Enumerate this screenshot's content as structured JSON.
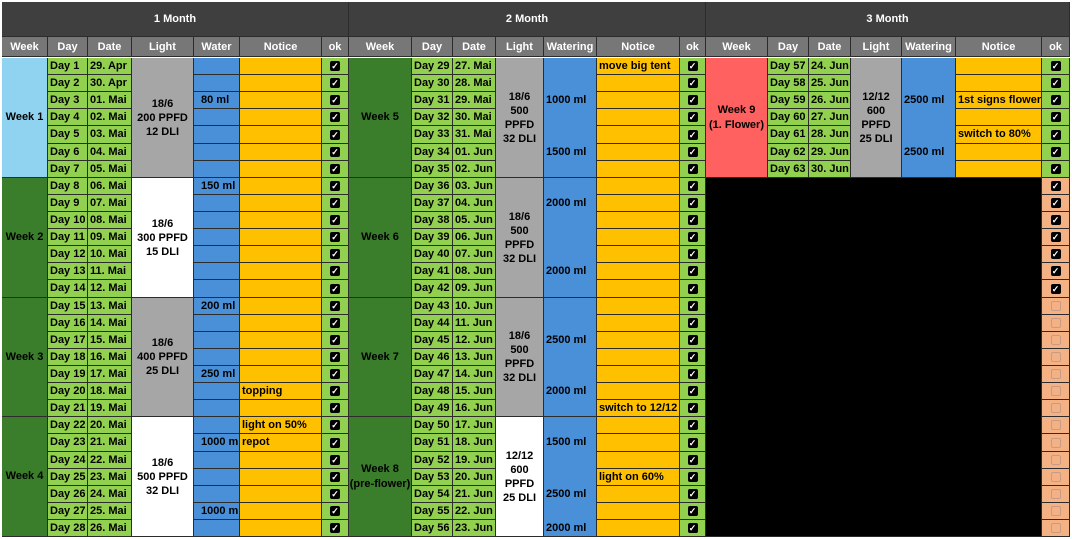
{
  "months": [
    "1 Month",
    "2 Month",
    "3 Month"
  ],
  "headers": {
    "m1": [
      "Week",
      "Day",
      "Date",
      "Light",
      "Water",
      "Notice",
      "ok"
    ],
    "m2": [
      "Week",
      "Day",
      "Date",
      "Light",
      "Watering",
      "Notice",
      "ok"
    ],
    "m3": [
      "Week",
      "Day",
      "Date",
      "Light",
      "Watering",
      "Notice",
      "ok"
    ]
  },
  "colors": {
    "header_dark": "#3f3f3f",
    "header_gray": "#777777",
    "day_green": "#92d050",
    "week_dark_green": "#3a7d2a",
    "week_light_blue": "#8fd3f0",
    "week_red": "#ff6060",
    "light_gray": "#a6a6a6",
    "light_white": "#ffffff",
    "water_blue": "#4a90d9",
    "notice_yellow": "#ffc000",
    "ok_green": "#92d050",
    "ok_peach": "#f4b183",
    "empty_black": "#000000"
  },
  "month1": {
    "weeks": [
      {
        "label": "Week 1",
        "color": "#8fd3f0",
        "light": [
          "18/6",
          "200 PPFD",
          "12 DLI"
        ],
        "light_color": "#a6a6a6"
      },
      {
        "label": "Week 2",
        "color": "#3a7d2a",
        "light": [
          "18/6",
          "300 PPFD",
          "15 DLI"
        ],
        "light_color": "#ffffff"
      },
      {
        "label": "Week 3",
        "color": "#3a7d2a",
        "light": [
          "18/6",
          "400 PPFD",
          "25 DLI"
        ],
        "light_color": "#a6a6a6"
      },
      {
        "label": "Week 4",
        "color": "#3a7d2a",
        "light": [
          "18/6",
          "500 PPFD",
          "32 DLI"
        ],
        "light_color": "#ffffff"
      }
    ],
    "days": [
      {
        "day": "Day 1",
        "date": "29. Apr",
        "water": "",
        "notice": ""
      },
      {
        "day": "Day 2",
        "date": "30. Apr",
        "water": "",
        "notice": ""
      },
      {
        "day": "Day 3",
        "date": "01. Mai",
        "water": "80 ml",
        "notice": ""
      },
      {
        "day": "Day 4",
        "date": "02. Mai",
        "water": "",
        "notice": ""
      },
      {
        "day": "Day 5",
        "date": "03. Mai",
        "water": "",
        "notice": ""
      },
      {
        "day": "Day 6",
        "date": "04. Mai",
        "water": "",
        "notice": ""
      },
      {
        "day": "Day 7",
        "date": "05. Mai",
        "water": "",
        "notice": ""
      },
      {
        "day": "Day 8",
        "date": "06. Mai",
        "water": "150 ml",
        "notice": ""
      },
      {
        "day": "Day 9",
        "date": "07. Mai",
        "water": "",
        "notice": ""
      },
      {
        "day": "Day 10",
        "date": "08. Mai",
        "water": "",
        "notice": ""
      },
      {
        "day": "Day 11",
        "date": "09. Mai",
        "water": "",
        "notice": ""
      },
      {
        "day": "Day 12",
        "date": "10. Mai",
        "water": "",
        "notice": ""
      },
      {
        "day": "Day 13",
        "date": "11. Mai",
        "water": "",
        "notice": ""
      },
      {
        "day": "Day 14",
        "date": "12. Mai",
        "water": "",
        "notice": ""
      },
      {
        "day": "Day 15",
        "date": "13. Mai",
        "water": "200 ml",
        "notice": ""
      },
      {
        "day": "Day 16",
        "date": "14. Mai",
        "water": "",
        "notice": ""
      },
      {
        "day": "Day 17",
        "date": "15. Mai",
        "water": "",
        "notice": ""
      },
      {
        "day": "Day 18",
        "date": "16. Mai",
        "water": "",
        "notice": ""
      },
      {
        "day": "Day 19",
        "date": "17. Mai",
        "water": "250 ml",
        "notice": ""
      },
      {
        "day": "Day 20",
        "date": "18. Mai",
        "water": "",
        "notice": "topping"
      },
      {
        "day": "Day 21",
        "date": "19. Mai",
        "water": "",
        "notice": ""
      },
      {
        "day": "Day 22",
        "date": "20. Mai",
        "water": "",
        "notice": "light on 50%"
      },
      {
        "day": "Day 23",
        "date": "21. Mai",
        "water": "1000 ml",
        "notice": "repot"
      },
      {
        "day": "Day 24",
        "date": "22. Mai",
        "water": "",
        "notice": ""
      },
      {
        "day": "Day 25",
        "date": "23. Mai",
        "water": "",
        "notice": ""
      },
      {
        "day": "Day 26",
        "date": "24. Mai",
        "water": "",
        "notice": ""
      },
      {
        "day": "Day 27",
        "date": "25. Mai",
        "water": "1000 ml",
        "notice": ""
      },
      {
        "day": "Day 28",
        "date": "26. Mai",
        "water": "",
        "notice": ""
      }
    ]
  },
  "month2": {
    "weeks": [
      {
        "label": "Week 5",
        "color": "#3a7d2a",
        "light": [
          "18/6",
          "500",
          "PPFD",
          "32 DLI"
        ],
        "light_color": "#a6a6a6",
        "watering": [
          {
            "text": "1000 ml",
            "row": 2
          },
          {
            "text": "1500 ml",
            "row": 5
          }
        ]
      },
      {
        "label": "Week 6",
        "color": "#3a7d2a",
        "light": [
          "18/6",
          "500",
          "PPFD",
          "32 DLI"
        ],
        "light_color": "#a6a6a6",
        "watering": [
          {
            "text": "2000 ml",
            "row": 1
          },
          {
            "text": "2000 ml",
            "row": 5
          }
        ]
      },
      {
        "label": "Week 7",
        "color": "#3a7d2a",
        "light": [
          "18/6",
          "500",
          "PPFD",
          "32 DLI"
        ],
        "light_color": "#a6a6a6",
        "watering": [
          {
            "text": "2500 ml",
            "row": 2
          },
          {
            "text": "2000 ml",
            "row": 5
          }
        ]
      },
      {
        "label": "Week 8",
        "label2": "(pre-flower)",
        "color": "#3a7d2a",
        "light": [
          "12/12",
          "600",
          "PPFD",
          "25 DLI"
        ],
        "light_color": "#ffffff",
        "watering": [
          {
            "text": "1500 ml",
            "row": 1
          },
          {
            "text": "2500 ml",
            "row": 4
          },
          {
            "text": "2000 ml",
            "row": 6
          }
        ]
      }
    ],
    "days": [
      {
        "day": "Day 29",
        "date": "27. Mai",
        "notice": "move big tent"
      },
      {
        "day": "Day 30",
        "date": "28. Mai",
        "notice": ""
      },
      {
        "day": "Day 31",
        "date": "29. Mai",
        "notice": ""
      },
      {
        "day": "Day 32",
        "date": "30. Mai",
        "notice": ""
      },
      {
        "day": "Day 33",
        "date": "31. Mai",
        "notice": ""
      },
      {
        "day": "Day 34",
        "date": "01. Jun",
        "notice": ""
      },
      {
        "day": "Day 35",
        "date": "02. Jun",
        "notice": ""
      },
      {
        "day": "Day 36",
        "date": "03. Jun",
        "notice": ""
      },
      {
        "day": "Day 37",
        "date": "04. Jun",
        "notice": ""
      },
      {
        "day": "Day 38",
        "date": "05. Jun",
        "notice": ""
      },
      {
        "day": "Day 39",
        "date": "06. Jun",
        "notice": ""
      },
      {
        "day": "Day 40",
        "date": "07. Jun",
        "notice": ""
      },
      {
        "day": "Day 41",
        "date": "08. Jun",
        "notice": ""
      },
      {
        "day": "Day 42",
        "date": "09. Jun",
        "notice": ""
      },
      {
        "day": "Day 43",
        "date": "10. Jun",
        "notice": ""
      },
      {
        "day": "Day 44",
        "date": "11. Jun",
        "notice": ""
      },
      {
        "day": "Day 45",
        "date": "12. Jun",
        "notice": ""
      },
      {
        "day": "Day 46",
        "date": "13. Jun",
        "notice": ""
      },
      {
        "day": "Day 47",
        "date": "14. Jun",
        "notice": ""
      },
      {
        "day": "Day 48",
        "date": "15. Jun",
        "notice": ""
      },
      {
        "day": "Day 49",
        "date": "16. Jun",
        "notice": "switch to 12/12"
      },
      {
        "day": "Day 50",
        "date": "17. Jun",
        "notice": ""
      },
      {
        "day": "Day 51",
        "date": "18. Jun",
        "notice": ""
      },
      {
        "day": "Day 52",
        "date": "19. Jun",
        "notice": ""
      },
      {
        "day": "Day 53",
        "date": "20. Jun",
        "notice": "light on 60%"
      },
      {
        "day": "Day 54",
        "date": "21. Jun",
        "notice": ""
      },
      {
        "day": "Day 55",
        "date": "22. Jun",
        "notice": ""
      },
      {
        "day": "Day 56",
        "date": "23. Jun",
        "notice": ""
      }
    ]
  },
  "month3": {
    "week": {
      "label": "Week 9",
      "label2": "(1. Flower)",
      "color": "#ff6060",
      "light": [
        "12/12",
        "600",
        "PPFD",
        "25 DLI"
      ],
      "light_color": "#a6a6a6",
      "watering": [
        {
          "text": "2500 ml",
          "row": 2
        },
        {
          "text": "2500 ml",
          "row": 5
        }
      ]
    },
    "days": [
      {
        "day": "Day 57",
        "date": "24. Jun",
        "notice": ""
      },
      {
        "day": "Day 58",
        "date": "25. Jun",
        "notice": ""
      },
      {
        "day": "Day 59",
        "date": "26. Jun",
        "notice": "1st signs flower"
      },
      {
        "day": "Day 60",
        "date": "27. Jun",
        "notice": ""
      },
      {
        "day": "Day 61",
        "date": "28. Jun",
        "notice": "switch to 80%"
      },
      {
        "day": "Day 62",
        "date": "29. Jun",
        "notice": ""
      },
      {
        "day": "Day 63",
        "date": "30. Jun",
        "notice": ""
      }
    ],
    "ok_checked_weeks": 2
  }
}
